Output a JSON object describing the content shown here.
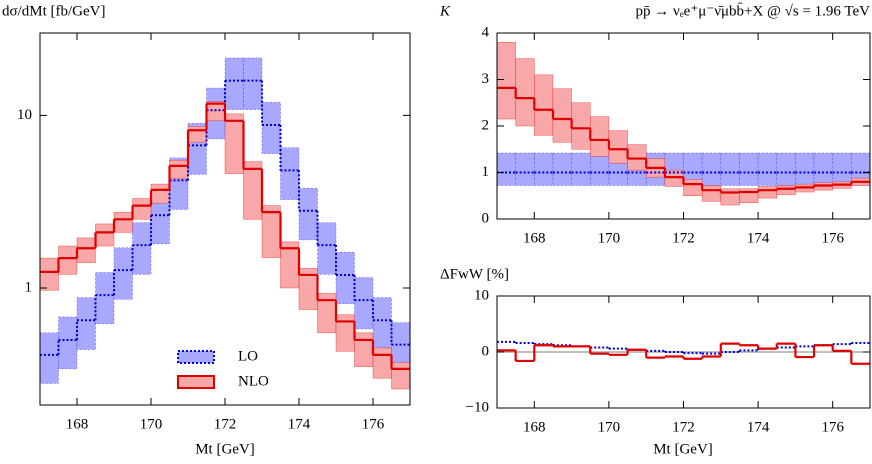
{
  "chart_data": [
    {
      "type": "histogram",
      "ylabel": "dσ/dMt [fb/GeV]",
      "xlabel": "Mt [GeV]",
      "bins": [
        167,
        167.5,
        168,
        168.5,
        169,
        169.5,
        170,
        170.5,
        171,
        171.5,
        172,
        172.5,
        173,
        173.5,
        174,
        174.5,
        175,
        175.5,
        176,
        176.5,
        177
      ],
      "xlim": [
        167,
        177
      ],
      "xticks": [
        168,
        170,
        172,
        174,
        176
      ],
      "ylim": [
        0.21,
        30
      ],
      "yticks": [
        1,
        10
      ],
      "log_y": true,
      "legend": "lower center",
      "series": [
        {
          "name": "LO",
          "color": "#0000dd",
          "band_color": "#a8a8ff",
          "style": "dotted",
          "values": [
            0.41,
            0.5,
            0.65,
            0.91,
            1.27,
            1.77,
            2.64,
            4.2,
            6.7,
            10.7,
            15.9,
            15.9,
            8.8,
            4.8,
            2.8,
            1.77,
            1.19,
            0.85,
            0.65,
            0.47
          ],
          "low": [
            0.28,
            0.34,
            0.44,
            0.62,
            0.86,
            1.2,
            1.8,
            2.85,
            4.55,
            7.3,
            10.8,
            10.8,
            6.0,
            3.25,
            1.9,
            1.2,
            0.81,
            0.58,
            0.44,
            0.32
          ],
          "high": [
            0.55,
            0.68,
            0.88,
            1.23,
            1.71,
            2.39,
            3.56,
            5.67,
            9.0,
            14.4,
            21.5,
            21.5,
            11.9,
            6.5,
            3.78,
            2.39,
            1.61,
            1.15,
            0.88,
            0.63
          ]
        },
        {
          "name": "NLO",
          "color": "#e00000",
          "band_color": "#f8a8a8",
          "style": "solid",
          "values": [
            1.24,
            1.49,
            1.7,
            2.1,
            2.5,
            3.0,
            3.7,
            5.1,
            8.2,
            11.7,
            9.3,
            4.9,
            2.75,
            1.7,
            1.19,
            0.85,
            0.64,
            0.5,
            0.41,
            0.34
          ],
          "low": [
            0.97,
            1.2,
            1.4,
            1.75,
            2.1,
            2.5,
            3.1,
            4.3,
            7.0,
            9.3,
            4.6,
            2.5,
            1.5,
            1.0,
            0.75,
            0.55,
            0.43,
            0.35,
            0.3,
            0.26
          ],
          "high": [
            1.49,
            1.75,
            1.95,
            2.35,
            2.75,
            3.3,
            4.0,
            5.5,
            8.6,
            12.0,
            10.2,
            5.4,
            3.0,
            1.85,
            1.3,
            0.93,
            0.7,
            0.55,
            0.45,
            0.37
          ]
        }
      ]
    },
    {
      "type": "histogram",
      "ylabel": "K",
      "title": "pp̄ → νₑe⁺μ⁻ν̄μbb̄+X @ √s = 1.96 TeV",
      "bins": [
        167,
        167.5,
        168,
        168.5,
        169,
        169.5,
        170,
        170.5,
        171,
        171.5,
        172,
        172.5,
        173,
        173.5,
        174,
        174.5,
        175,
        175.5,
        176,
        176.5,
        177
      ],
      "xlim": [
        167,
        177
      ],
      "xticks": [
        168,
        170,
        172,
        174,
        176
      ],
      "ylim": [
        0,
        4
      ],
      "yticks": [
        0,
        1,
        2,
        3,
        4
      ],
      "series": [
        {
          "color": "#0000dd",
          "band_color": "#a8a8ff",
          "style": "dotted",
          "values": [
            1,
            1,
            1,
            1,
            1,
            1,
            1,
            1,
            1,
            1,
            1,
            1,
            1,
            1,
            1,
            1,
            1,
            1,
            1,
            1
          ],
          "low": [
            0.72,
            0.72,
            0.72,
            0.72,
            0.72,
            0.72,
            0.72,
            0.72,
            0.72,
            0.72,
            0.72,
            0.72,
            0.72,
            0.72,
            0.72,
            0.72,
            0.72,
            0.72,
            0.72,
            0.72
          ],
          "high": [
            1.42,
            1.42,
            1.42,
            1.42,
            1.42,
            1.42,
            1.42,
            1.42,
            1.42,
            1.42,
            1.42,
            1.42,
            1.42,
            1.42,
            1.42,
            1.42,
            1.42,
            1.42,
            1.42,
            1.42
          ]
        },
        {
          "color": "#e00000",
          "band_color": "#f8a8a8",
          "style": "solid",
          "values": [
            2.82,
            2.6,
            2.35,
            2.15,
            1.95,
            1.7,
            1.5,
            1.3,
            1.1,
            0.9,
            0.75,
            0.62,
            0.57,
            0.58,
            0.62,
            0.65,
            0.68,
            0.72,
            0.74,
            0.8
          ],
          "low": [
            2.15,
            2.0,
            1.8,
            1.65,
            1.5,
            1.35,
            1.2,
            1.05,
            0.9,
            0.7,
            0.5,
            0.38,
            0.3,
            0.35,
            0.45,
            0.52,
            0.58,
            0.62,
            0.66,
            0.72
          ],
          "high": [
            3.8,
            3.45,
            3.1,
            2.8,
            2.5,
            2.2,
            1.9,
            1.6,
            1.3,
            1.05,
            0.85,
            0.72,
            0.65,
            0.65,
            0.7,
            0.72,
            0.75,
            0.78,
            0.8,
            0.88
          ]
        }
      ]
    },
    {
      "type": "histogram",
      "ylabel": "ΔFwW [%]",
      "xlabel": "Mt [GeV]",
      "bins": [
        167,
        167.5,
        168,
        168.5,
        169,
        169.5,
        170,
        170.5,
        171,
        171.5,
        172,
        172.5,
        173,
        173.5,
        174,
        174.5,
        175,
        175.5,
        176,
        176.5,
        177
      ],
      "xlim": [
        167,
        177
      ],
      "xticks": [
        168,
        170,
        172,
        174,
        176
      ],
      "ylim": [
        -10,
        10
      ],
      "yticks": [
        {
          "value": -10,
          "label": "−10"
        },
        0,
        10
      ],
      "series": [
        {
          "color": "#0000dd",
          "style": "dotted",
          "values": [
            1.8,
            1.6,
            1.4,
            1.2,
            1.0,
            0.8,
            0.6,
            0.4,
            0.2,
            0,
            -0.2,
            -0.3,
            0,
            0.3,
            0.6,
            0.8,
            1.0,
            1.2,
            1.4,
            1.6
          ]
        },
        {
          "color": "#e00000",
          "style": "solid",
          "values": [
            0.3,
            -1.6,
            1.2,
            1.0,
            1.0,
            -0.3,
            -0.5,
            0.4,
            -1.0,
            -0.8,
            -1.2,
            -0.8,
            1.5,
            1.2,
            0.6,
            1.5,
            -0.9,
            1.2,
            0.2,
            -2.1
          ]
        }
      ]
    }
  ]
}
